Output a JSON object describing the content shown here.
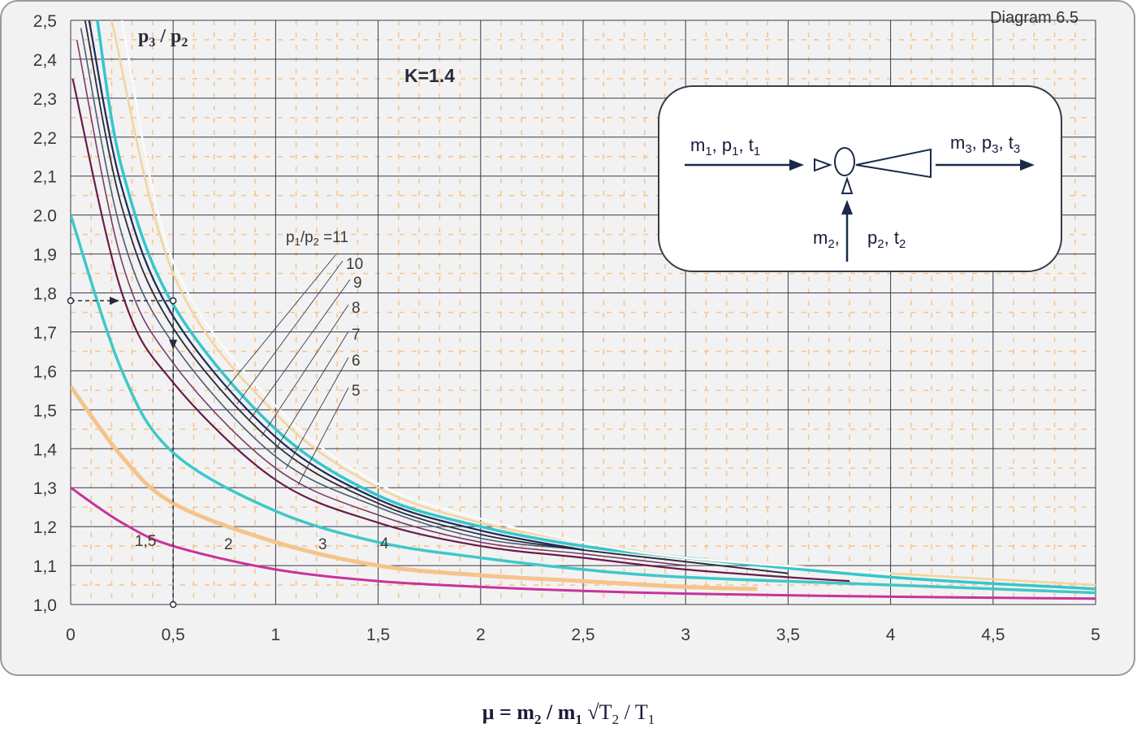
{
  "chart_data": {
    "type": "line",
    "title": "Diagram 6.5",
    "annotation": "K=1.4",
    "ylabel": "p3 / p2",
    "xlabel": "μ = m2 / m1 √(T2 / T1)",
    "xlim": [
      0,
      5
    ],
    "ylim": [
      1.0,
      2.5
    ],
    "grid": true,
    "x_ticks": [
      "0",
      "0,5",
      "1",
      "1,5",
      "2",
      "2,5",
      "3",
      "3,5",
      "4",
      "4,5",
      "5"
    ],
    "y_ticks": [
      "1,0",
      "1,1",
      "1,2",
      "1,3",
      "1,4",
      "1,5",
      "1,6",
      "1,7",
      "1,8",
      "1,9",
      "2.0",
      "2,1",
      "2,2",
      "2,3",
      "2,4",
      "2,5"
    ],
    "series_label_prefix": "p1/p2 =",
    "series": [
      {
        "name": "1,5",
        "color": "#c8329c",
        "x": [
          0,
          0.25,
          0.5,
          1.0,
          1.5,
          2.0,
          2.5,
          3.0,
          4.0,
          5.0
        ],
        "values": [
          1.3,
          1.21,
          1.15,
          1.09,
          1.06,
          1.045,
          1.035,
          1.028,
          1.02,
          1.015
        ]
      },
      {
        "name": "2",
        "color": "#f5c48c",
        "x": [
          0,
          0.25,
          0.5,
          1.0,
          1.5,
          2.0,
          2.5,
          3.0,
          3.35
        ],
        "values": [
          1.56,
          1.38,
          1.26,
          1.16,
          1.1,
          1.075,
          1.06,
          1.045,
          1.04
        ]
      },
      {
        "name": "3",
        "color": "#3ec8c8",
        "x": [
          0,
          0.25,
          0.5,
          1.0,
          1.5,
          2.0,
          2.5,
          3.0,
          4.0,
          5.0
        ],
        "values": [
          2.0,
          1.6,
          1.39,
          1.24,
          1.16,
          1.12,
          1.09,
          1.07,
          1.05,
          1.03
        ]
      },
      {
        "name": "4",
        "color": "#6a1a4a",
        "x": [
          0.01,
          0.25,
          0.5,
          1.0,
          1.5,
          2.0,
          2.5,
          3.0,
          3.5,
          3.8
        ],
        "values": [
          2.35,
          1.8,
          1.57,
          1.32,
          1.21,
          1.15,
          1.12,
          1.09,
          1.07,
          1.06
        ]
      },
      {
        "name": "5",
        "color": "#7a3a6a",
        "x": [
          0.03,
          0.25,
          0.5,
          1.0,
          1.5,
          2.0,
          2.5,
          3.0
        ],
        "values": [
          2.45,
          1.88,
          1.62,
          1.35,
          1.23,
          1.16,
          1.13,
          1.1
        ]
      },
      {
        "name": "6",
        "color": "#4a5a7a",
        "x": [
          0.05,
          0.25,
          0.5,
          1.0,
          1.5,
          2.0,
          2.5,
          3.0,
          3.5
        ],
        "values": [
          2.48,
          1.95,
          1.67,
          1.38,
          1.25,
          1.17,
          1.14,
          1.11,
          1.08
        ]
      },
      {
        "name": "7",
        "color": "#2a2a3a",
        "x": [
          0.07,
          0.25,
          0.5,
          1.0,
          1.5,
          2.0,
          2.5,
          3.0,
          3.5
        ],
        "values": [
          2.5,
          2.02,
          1.71,
          1.41,
          1.26,
          1.18,
          1.14,
          1.11,
          1.08
        ]
      },
      {
        "name": "8",
        "color": "#1a2a5a",
        "x": [
          0.09,
          0.25,
          0.5,
          1.0,
          1.5,
          2.0,
          2.5
        ],
        "values": [
          2.5,
          2.07,
          1.74,
          1.43,
          1.27,
          1.19,
          1.14
        ]
      },
      {
        "name": "9",
        "color": "#34c6cc",
        "x": [
          0.13,
          0.25,
          0.5,
          1.0,
          1.5,
          2.0,
          2.5,
          3.0,
          4.0,
          5.0
        ],
        "values": [
          2.5,
          2.12,
          1.77,
          1.45,
          1.28,
          1.2,
          1.15,
          1.12,
          1.07,
          1.04
        ]
      },
      {
        "name": "10",
        "color": "#f4d49c",
        "x": [
          0.2,
          0.5,
          1.0,
          1.5,
          2.0,
          2.5,
          3.0,
          3.5,
          4.0,
          5.0
        ],
        "values": [
          2.5,
          1.85,
          1.49,
          1.3,
          1.21,
          1.16,
          1.12,
          1.1,
          1.08,
          1.05
        ]
      },
      {
        "name": "11",
        "color": "#fbfbfb",
        "x": [
          0.25,
          0.5,
          1.0,
          1.5,
          2.0,
          2.5,
          3.0,
          4.0
        ],
        "values": [
          2.5,
          1.88,
          1.51,
          1.31,
          1.22,
          1.16,
          1.12,
          1.08
        ]
      }
    ],
    "example_lines": {
      "y": 1.78,
      "x": 0.5
    },
    "legend_placement": "inline curve labels",
    "schematic": {
      "inlet_label": [
        "m",
        "1",
        ", p",
        "1",
        ", t",
        "1"
      ],
      "suction_m_label": [
        "m",
        "2",
        ","
      ],
      "suction_p_label": [
        "p",
        "2",
        ", t",
        "2"
      ],
      "outlet_label": [
        "m",
        "3",
        ", p",
        "3",
        ", t",
        "3"
      ]
    }
  },
  "labels": {
    "diagram_title": "Diagram 6.5",
    "k_annotation": "K=1.4",
    "ylabel": [
      "p",
      "3",
      " / p",
      "2"
    ],
    "series_prefix": [
      "p",
      "1",
      "/p",
      "2",
      " =11"
    ],
    "xaxis_title": [
      "μ = m",
      "2",
      " / m",
      "1",
      " √T",
      "2",
      " / T",
      "1"
    ]
  }
}
